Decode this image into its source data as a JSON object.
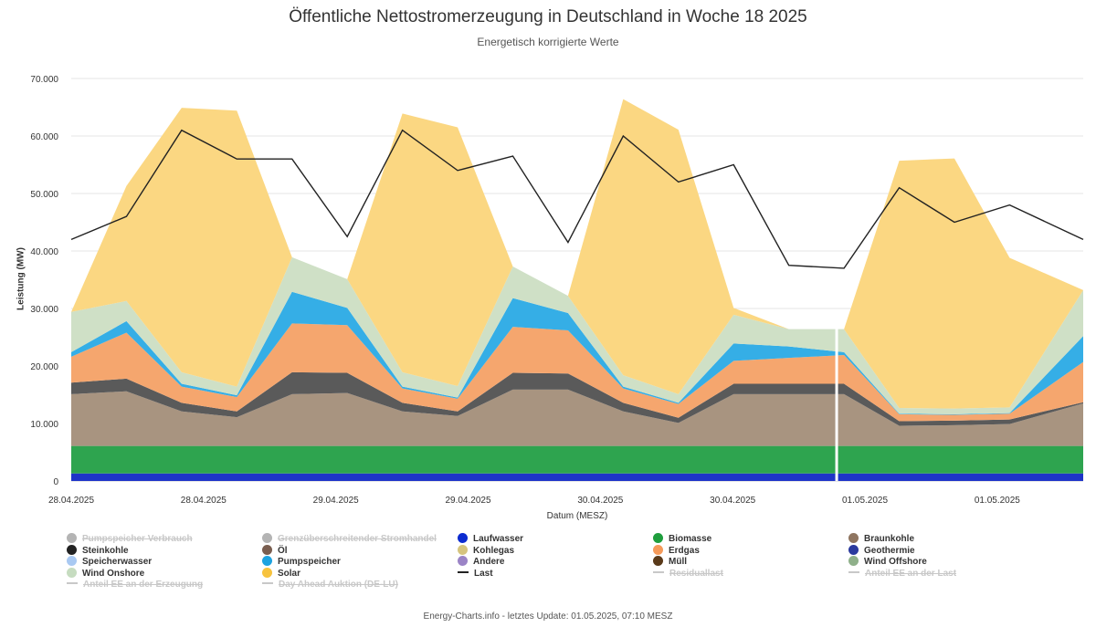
{
  "chart_data": {
    "type": "area",
    "title": "Öffentliche Nettostromerzeugung in Deutschland in Woche 18 2025",
    "subtitle": "Energetisch korrigierte Werte",
    "ylabel": "Leistung (MW)",
    "xlabel": "Datum (MESZ)",
    "ylim": [
      0,
      70000
    ],
    "yticks": [
      "0",
      "10.000",
      "20.000",
      "30.000",
      "40.000",
      "50.000",
      "60.000",
      "70.000"
    ],
    "xticks": [
      "28.04.2025",
      "28.04.2025",
      "29.04.2025",
      "29.04.2025",
      "30.04.2025",
      "30.04.2025",
      "01.05.2025",
      "01.05.2025"
    ],
    "x_hours": [
      0,
      6,
      12,
      18,
      24,
      30,
      36,
      42,
      48,
      54,
      60,
      66,
      72,
      78,
      84,
      90,
      96,
      102,
      110
    ],
    "series": [
      {
        "name": "Laufwasser",
        "color": "#1e34c8",
        "values": [
          1300,
          1300,
          1300,
          1300,
          1300,
          1300,
          1300,
          1300,
          1300,
          1300,
          1300,
          1300,
          1300,
          1300,
          1300,
          1300,
          1300,
          1300,
          1300
        ]
      },
      {
        "name": "Biomasse",
        "color": "#2ea44f",
        "values": [
          4800,
          4800,
          4800,
          4800,
          4800,
          4800,
          4800,
          4800,
          4800,
          4800,
          4800,
          4800,
          4800,
          4800,
          4800,
          4800,
          4800,
          4800,
          4800
        ]
      },
      {
        "name": "Braunkohle",
        "color": "#a89480",
        "values": [
          9000,
          9500,
          6000,
          5000,
          9000,
          9200,
          6000,
          5200,
          9800,
          9800,
          6000,
          4000,
          9000,
          9000,
          9000,
          3500,
          3600,
          3800,
          7400
        ]
      },
      {
        "name": "Steinkohle",
        "color": "#5a5a5a",
        "values": [
          2000,
          2200,
          1500,
          1000,
          3800,
          3500,
          1500,
          800,
          2900,
          2800,
          1500,
          900,
          1800,
          1800,
          1800,
          800,
          800,
          800,
          200
        ]
      },
      {
        "name": "Erdgas",
        "color": "#f5a66e",
        "values": [
          4500,
          8000,
          2800,
          2500,
          8500,
          8300,
          2500,
          2200,
          8000,
          7500,
          2500,
          2400,
          4000,
          4500,
          5000,
          1200,
          1000,
          1000,
          7000
        ]
      },
      {
        "name": "Pumpspeicher",
        "color": "#35aee6",
        "values": [
          800,
          2000,
          500,
          300,
          5500,
          3000,
          300,
          200,
          5000,
          3000,
          300,
          200,
          3000,
          2000,
          500,
          100,
          100,
          100,
          4500
        ]
      },
      {
        "name": "Wind Onshore",
        "color": "#cfe0c6",
        "values": [
          7000,
          3500,
          2000,
          1500,
          6000,
          5000,
          2500,
          2000,
          5500,
          3000,
          2000,
          1500,
          5000,
          3000,
          4000,
          1000,
          1000,
          1000,
          8000
        ]
      },
      {
        "name": "Solar",
        "color": "#fbd782",
        "values": [
          0,
          20000,
          46000,
          48000,
          0,
          0,
          45000,
          45000,
          0,
          0,
          48000,
          46000,
          1200,
          0,
          0,
          43000,
          43500,
          26000,
          0
        ]
      }
    ],
    "last": {
      "name": "Last",
      "color": "#222222",
      "values": [
        42000,
        46000,
        61000,
        56000,
        56000,
        42500,
        61000,
        54000,
        56500,
        41500,
        60000,
        52000,
        55000,
        37500,
        37000,
        51000,
        45000,
        48000,
        42000
      ]
    }
  },
  "legend": [
    {
      "label": "Pumpspeicher Verbrauch",
      "color": "#b4b4b4",
      "kind": "dot",
      "hidden": true
    },
    {
      "label": "Grenzüberschreitender Stromhandel",
      "color": "#b4b4b4",
      "kind": "dot",
      "hidden": true
    },
    {
      "label": "Laufwasser",
      "color": "#0c2bd0",
      "kind": "dot",
      "hidden": false
    },
    {
      "label": "Biomasse",
      "color": "#1f9e3d",
      "kind": "dot",
      "hidden": false
    },
    {
      "label": "Braunkohle",
      "color": "#8f7560",
      "kind": "dot",
      "hidden": false
    },
    {
      "label": "Steinkohle",
      "color": "#222222",
      "kind": "dot",
      "hidden": false
    },
    {
      "label": "Öl",
      "color": "#7a5e50",
      "kind": "dot",
      "hidden": false
    },
    {
      "label": "Kohlegas",
      "color": "#d6c47e",
      "kind": "dot",
      "hidden": false
    },
    {
      "label": "Erdgas",
      "color": "#f59a5a",
      "kind": "dot",
      "hidden": false
    },
    {
      "label": "Geothermie",
      "color": "#2b3a9e",
      "kind": "dot",
      "hidden": false
    },
    {
      "label": "Speicherwasser",
      "color": "#a9c9f2",
      "kind": "dot",
      "hidden": false
    },
    {
      "label": "Pumpspeicher",
      "color": "#1ea3e0",
      "kind": "dot",
      "hidden": false
    },
    {
      "label": "Andere",
      "color": "#9b84c6",
      "kind": "dot",
      "hidden": false
    },
    {
      "label": "Müll",
      "color": "#5a3a1a",
      "kind": "dot",
      "hidden": false
    },
    {
      "label": "Wind Offshore",
      "color": "#8fb08a",
      "kind": "dot",
      "hidden": false
    },
    {
      "label": "Wind Onshore",
      "color": "#c6dcc0",
      "kind": "dot",
      "hidden": false
    },
    {
      "label": "Solar",
      "color": "#f7c33e",
      "kind": "dot",
      "hidden": false
    },
    {
      "label": "Last",
      "color": "#222222",
      "kind": "line",
      "hidden": false
    },
    {
      "label": "Residuallast",
      "color": "#c8c8c8",
      "kind": "line",
      "hidden": true
    },
    {
      "label": "Anteil EE an der Last",
      "color": "#c8c8c8",
      "kind": "line",
      "hidden": true
    },
    {
      "label": "Anteil EE an der Erzeugung",
      "color": "#c8c8c8",
      "kind": "line",
      "hidden": true
    },
    {
      "label": "Day Ahead Auktion (DE-LU)",
      "color": "#c8c8c8",
      "kind": "line",
      "hidden": true
    }
  ],
  "footer": "Energy-Charts.info - letztes Update: 01.05.2025, 07:10 MESZ"
}
